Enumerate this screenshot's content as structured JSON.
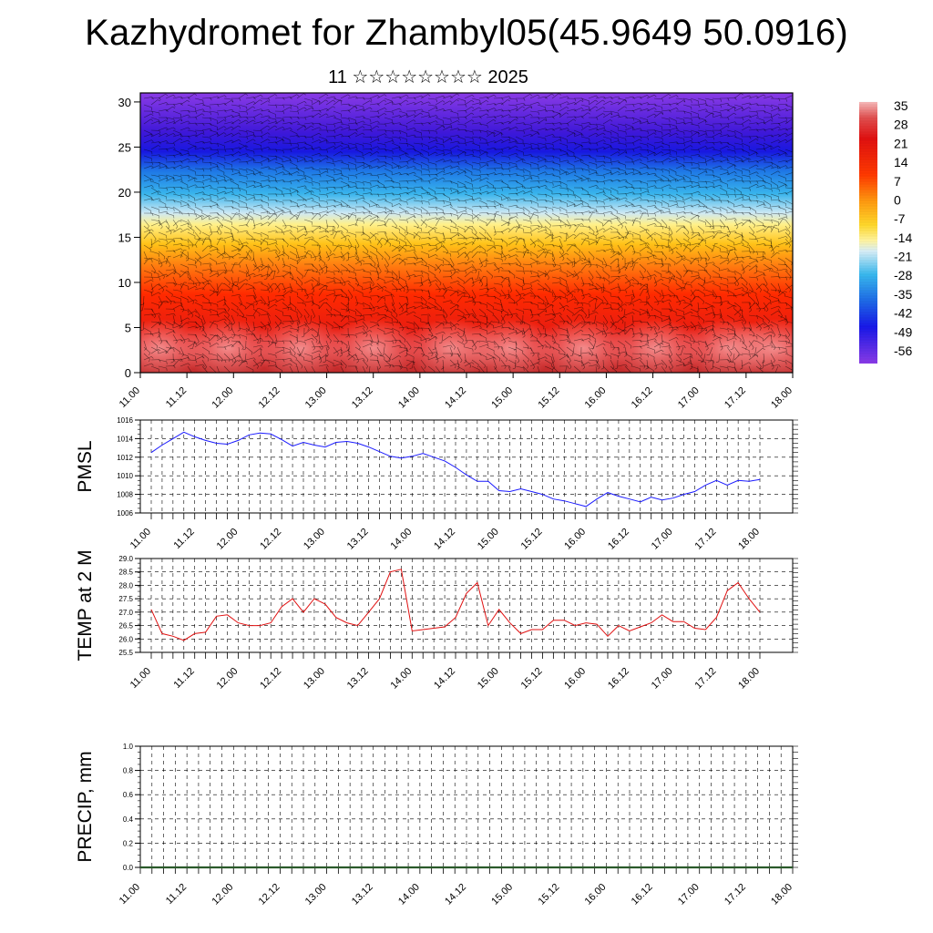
{
  "title": "Kazhydromet for Zhambyl05(45.9649 50.0916)",
  "subtitle": "11 ☆☆☆☆☆☆☆☆ 2025",
  "colors": {
    "pmsl_line": "#1a1aff",
    "temp_line": "#e01010",
    "precip_line": "#2a5a2a",
    "grid": "#000000"
  },
  "chart_data": [
    {
      "type": "heatmap",
      "title": "",
      "x_tick_labels": [
        "11.00",
        "11.12",
        "12.00",
        "12.12",
        "13.00",
        "13.12",
        "14.00",
        "14.12",
        "15.00",
        "15.12",
        "16.00",
        "16.12",
        "17.00",
        "17.12",
        "18.00"
      ],
      "ylabel": "",
      "ylim": [
        0,
        31
      ],
      "y_ticks": [
        0,
        5,
        10,
        15,
        20,
        25,
        30
      ],
      "colorbar_labels": [
        "35",
        "28",
        "21",
        "14",
        "7",
        "0",
        "-7",
        "-14",
        "-21",
        "-28",
        "-35",
        "-42",
        "-49",
        "-56"
      ],
      "colorbar_range": [
        -63,
        42
      ],
      "overlay": "wind barbs",
      "description_levels": [
        {
          "level": 0,
          "value": 30
        },
        {
          "level": 5,
          "value": 26
        },
        {
          "level": 10,
          "value": 18
        },
        {
          "level": 15,
          "value": -5
        },
        {
          "level": 20,
          "value": -30
        },
        {
          "level": 25,
          "value": -52
        },
        {
          "level": 30,
          "value": -58
        }
      ]
    },
    {
      "type": "line",
      "ylabel": "PMSL",
      "ylim": [
        1006,
        1016
      ],
      "y_ticks": [
        "1016",
        "1014",
        "1012",
        "1010",
        "1008",
        "1006"
      ],
      "x_tick_labels": [
        "11.00",
        "11.12",
        "12.00",
        "12.12",
        "13.00",
        "13.12",
        "14.00",
        "14.12",
        "15.00",
        "15.12",
        "16.00",
        "16.12",
        "17.00",
        "17.12",
        "18.00"
      ],
      "x_hours": [
        0,
        3,
        6,
        9,
        12,
        15,
        18,
        21,
        24,
        27,
        30,
        33,
        36,
        39,
        42,
        45,
        48,
        51,
        54,
        57,
        60,
        63,
        66,
        69,
        72,
        75,
        78,
        81,
        84,
        87,
        90,
        93,
        96,
        99,
        102,
        105,
        108,
        111,
        114,
        117,
        120,
        123,
        126,
        129,
        132,
        135,
        138,
        141,
        144,
        147,
        150,
        153,
        156,
        159,
        162,
        165,
        168
      ],
      "values": [
        1012.5,
        1013.3,
        1014.0,
        1014.7,
        1014.2,
        1013.8,
        1013.5,
        1013.4,
        1013.8,
        1014.4,
        1014.6,
        1014.5,
        1013.9,
        1013.2,
        1013.6,
        1013.3,
        1013.1,
        1013.6,
        1013.7,
        1013.5,
        1013.1,
        1012.6,
        1012.1,
        1011.9,
        1012.1,
        1012.4,
        1012.0,
        1011.6,
        1010.9,
        1010.1,
        1009.4,
        1009.4,
        1008.4,
        1008.3,
        1008.6,
        1008.3,
        1008.0,
        1007.5,
        1007.3,
        1007.0,
        1006.7,
        1007.5,
        1008.2,
        1007.8,
        1007.5,
        1007.2,
        1007.7,
        1007.4,
        1007.6,
        1008.0,
        1008.3,
        1009.0,
        1009.5,
        1009.0,
        1009.5,
        1009.4,
        1009.6
      ]
    },
    {
      "type": "line",
      "ylabel": "TEMP at 2 M",
      "ylim": [
        25.5,
        29.0
      ],
      "y_ticks": [
        "29.0",
        "28.5",
        "28.0",
        "27.5",
        "27.0",
        "26.5",
        "26.0",
        "25.5"
      ],
      "x_tick_labels": [
        "11.00",
        "11.12",
        "12.00",
        "12.12",
        "13.00",
        "13.12",
        "14.00",
        "14.12",
        "15.00",
        "15.12",
        "16.00",
        "16.12",
        "17.00",
        "17.12",
        "18.00"
      ],
      "x_hours": [
        0,
        3,
        6,
        9,
        12,
        15,
        18,
        21,
        24,
        27,
        30,
        33,
        36,
        39,
        42,
        45,
        48,
        51,
        54,
        57,
        60,
        63,
        66,
        69,
        72,
        75,
        78,
        81,
        84,
        87,
        90,
        93,
        96,
        99,
        102,
        105,
        108,
        111,
        114,
        117,
        120,
        123,
        126,
        129,
        132,
        135,
        138,
        141,
        144,
        147,
        150,
        153,
        156,
        159,
        162,
        165,
        168
      ],
      "values": [
        27.1,
        26.2,
        26.1,
        25.95,
        26.2,
        26.25,
        26.85,
        26.9,
        26.6,
        26.5,
        26.5,
        26.6,
        27.2,
        27.5,
        27.0,
        27.5,
        27.3,
        26.8,
        26.6,
        26.5,
        27.0,
        27.5,
        28.5,
        28.6,
        26.3,
        26.35,
        26.4,
        26.45,
        26.8,
        27.7,
        28.1,
        26.5,
        27.1,
        26.6,
        26.2,
        26.35,
        26.35,
        26.7,
        26.7,
        26.5,
        26.6,
        26.55,
        26.1,
        26.5,
        26.3,
        26.45,
        26.6,
        26.9,
        26.65,
        26.65,
        26.4,
        26.35,
        26.8,
        27.8,
        28.1,
        27.5,
        27.0
      ]
    },
    {
      "type": "line",
      "ylabel": "PRECIP, mm",
      "ylim": [
        0.0,
        1.0
      ],
      "y_ticks": [
        "1.0",
        "0.8",
        "0.6",
        "0.4",
        "0.2",
        "0.0"
      ],
      "x_tick_labels": [
        "11.00",
        "11.12",
        "12.00",
        "12.12",
        "13.00",
        "13.12",
        "14.00",
        "14.12",
        "15.00",
        "15.12",
        "16.00",
        "16.12",
        "17.00",
        "17.12",
        "18.00"
      ],
      "x_hours": [
        0,
        168
      ],
      "values": [
        0.0,
        0.0
      ]
    }
  ]
}
